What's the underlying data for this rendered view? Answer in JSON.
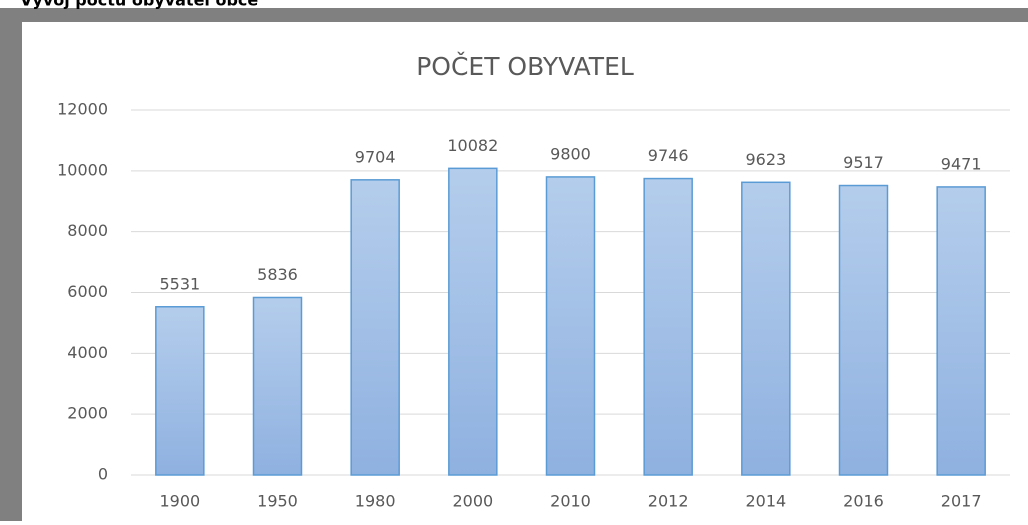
{
  "heading": "Vývoj počtu obyvatel obce",
  "chart_data": {
    "type": "bar",
    "title": "POČET OBYVATEL",
    "categories": [
      "1900",
      "1950",
      "1980",
      "2000",
      "2010",
      "2012",
      "2014",
      "2016",
      "2017"
    ],
    "values": [
      5531,
      5836,
      9704,
      10082,
      9800,
      9746,
      9623,
      9517,
      9471
    ],
    "color": "#9dbce6",
    "edge_color": "#5b9bd5",
    "ylim": [
      0,
      12000
    ],
    "yticks": [
      0,
      2000,
      4000,
      6000,
      8000,
      10000,
      12000
    ],
    "grid": true
  }
}
